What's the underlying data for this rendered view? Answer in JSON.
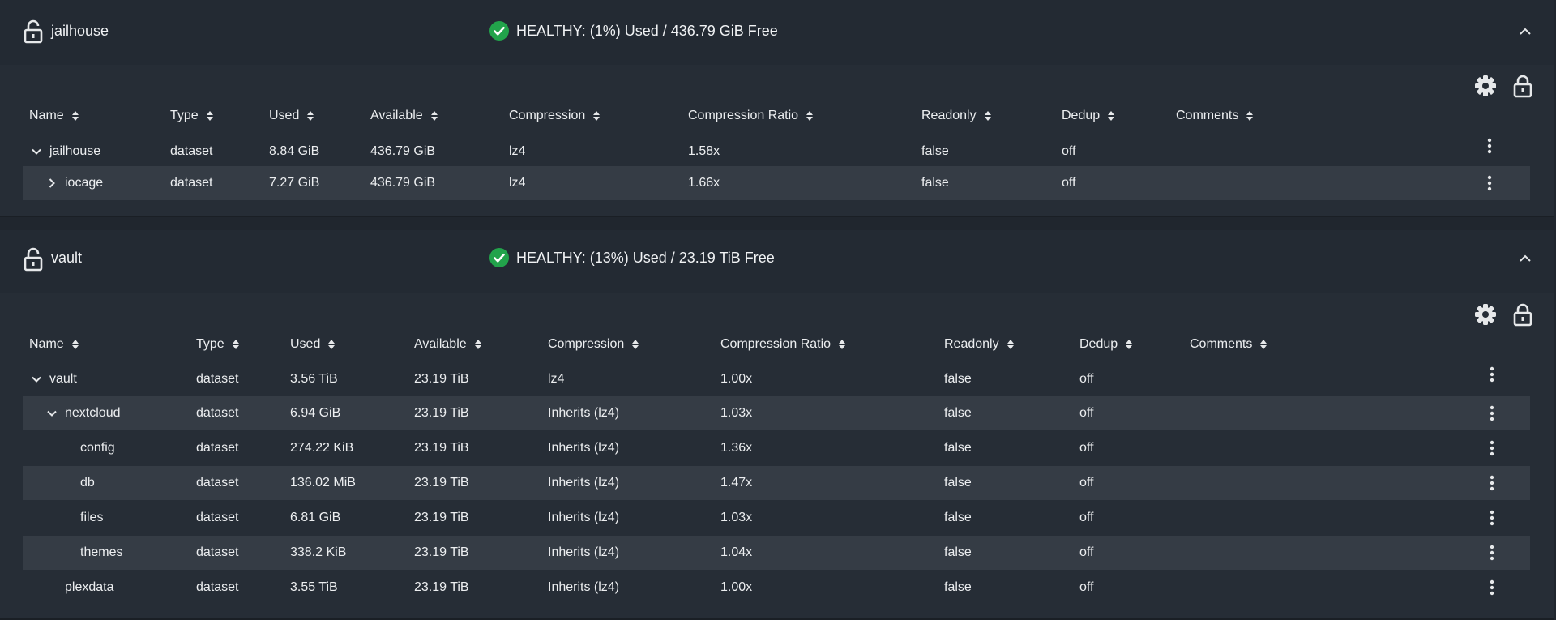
{
  "pools": [
    {
      "name": "jailhouse",
      "status": "HEALTHY: (1%) Used / 436.79 GiB Free",
      "columns": [
        "Name",
        "Type",
        "Used",
        "Available",
        "Compression",
        "Compression Ratio",
        "Readonly",
        "Dedup",
        "Comments"
      ],
      "rows": [
        {
          "name": "jailhouse",
          "type": "dataset",
          "used": "8.84 GiB",
          "available": "436.79 GiB",
          "compression": "lz4",
          "ratio": "1.58x",
          "readonly": "false",
          "dedup": "off",
          "comments": ""
        },
        {
          "name": "iocage",
          "type": "dataset",
          "used": "7.27 GiB",
          "available": "436.79 GiB",
          "compression": "lz4",
          "ratio": "1.66x",
          "readonly": "false",
          "dedup": "off",
          "comments": ""
        }
      ]
    },
    {
      "name": "vault",
      "status": "HEALTHY: (13%) Used / 23.19 TiB Free",
      "columns": [
        "Name",
        "Type",
        "Used",
        "Available",
        "Compression",
        "Compression Ratio",
        "Readonly",
        "Dedup",
        "Comments"
      ],
      "rows": [
        {
          "name": "vault",
          "type": "dataset",
          "used": "3.56 TiB",
          "available": "23.19 TiB",
          "compression": "lz4",
          "ratio": "1.00x",
          "readonly": "false",
          "dedup": "off",
          "comments": ""
        },
        {
          "name": "nextcloud",
          "type": "dataset",
          "used": "6.94 GiB",
          "available": "23.19 TiB",
          "compression": "Inherits (lz4)",
          "ratio": "1.03x",
          "readonly": "false",
          "dedup": "off",
          "comments": ""
        },
        {
          "name": "config",
          "type": "dataset",
          "used": "274.22 KiB",
          "available": "23.19 TiB",
          "compression": "Inherits (lz4)",
          "ratio": "1.36x",
          "readonly": "false",
          "dedup": "off",
          "comments": ""
        },
        {
          "name": "db",
          "type": "dataset",
          "used": "136.02 MiB",
          "available": "23.19 TiB",
          "compression": "Inherits (lz4)",
          "ratio": "1.47x",
          "readonly": "false",
          "dedup": "off",
          "comments": ""
        },
        {
          "name": "files",
          "type": "dataset",
          "used": "6.81 GiB",
          "available": "23.19 TiB",
          "compression": "Inherits (lz4)",
          "ratio": "1.03x",
          "readonly": "false",
          "dedup": "off",
          "comments": ""
        },
        {
          "name": "themes",
          "type": "dataset",
          "used": "338.2 KiB",
          "available": "23.19 TiB",
          "compression": "Inherits (lz4)",
          "ratio": "1.04x",
          "readonly": "false",
          "dedup": "off",
          "comments": ""
        },
        {
          "name": "plexdata",
          "type": "dataset",
          "used": "3.55 TiB",
          "available": "23.19 TiB",
          "compression": "Inherits (lz4)",
          "ratio": "1.00x",
          "readonly": "false",
          "dedup": "off",
          "comments": ""
        }
      ]
    }
  ],
  "icons": {
    "pool": "lock-open-icon",
    "status": "check-circle-icon",
    "collapse": "chevron-up-icon",
    "settings": "gear-icon",
    "encryption": "lock-icon",
    "expanded": "chevron-down-icon",
    "collapsed": "chevron-right-icon",
    "actions": "kebab-menu-icon",
    "sort": "sort-icon"
  },
  "colors": {
    "page_bg": "#20262e",
    "header_bg": "#232a33",
    "body_bg": "#262d36",
    "row_alt_bg": "#353c45",
    "healthy": "#22a34b",
    "text": "#eceef0"
  }
}
